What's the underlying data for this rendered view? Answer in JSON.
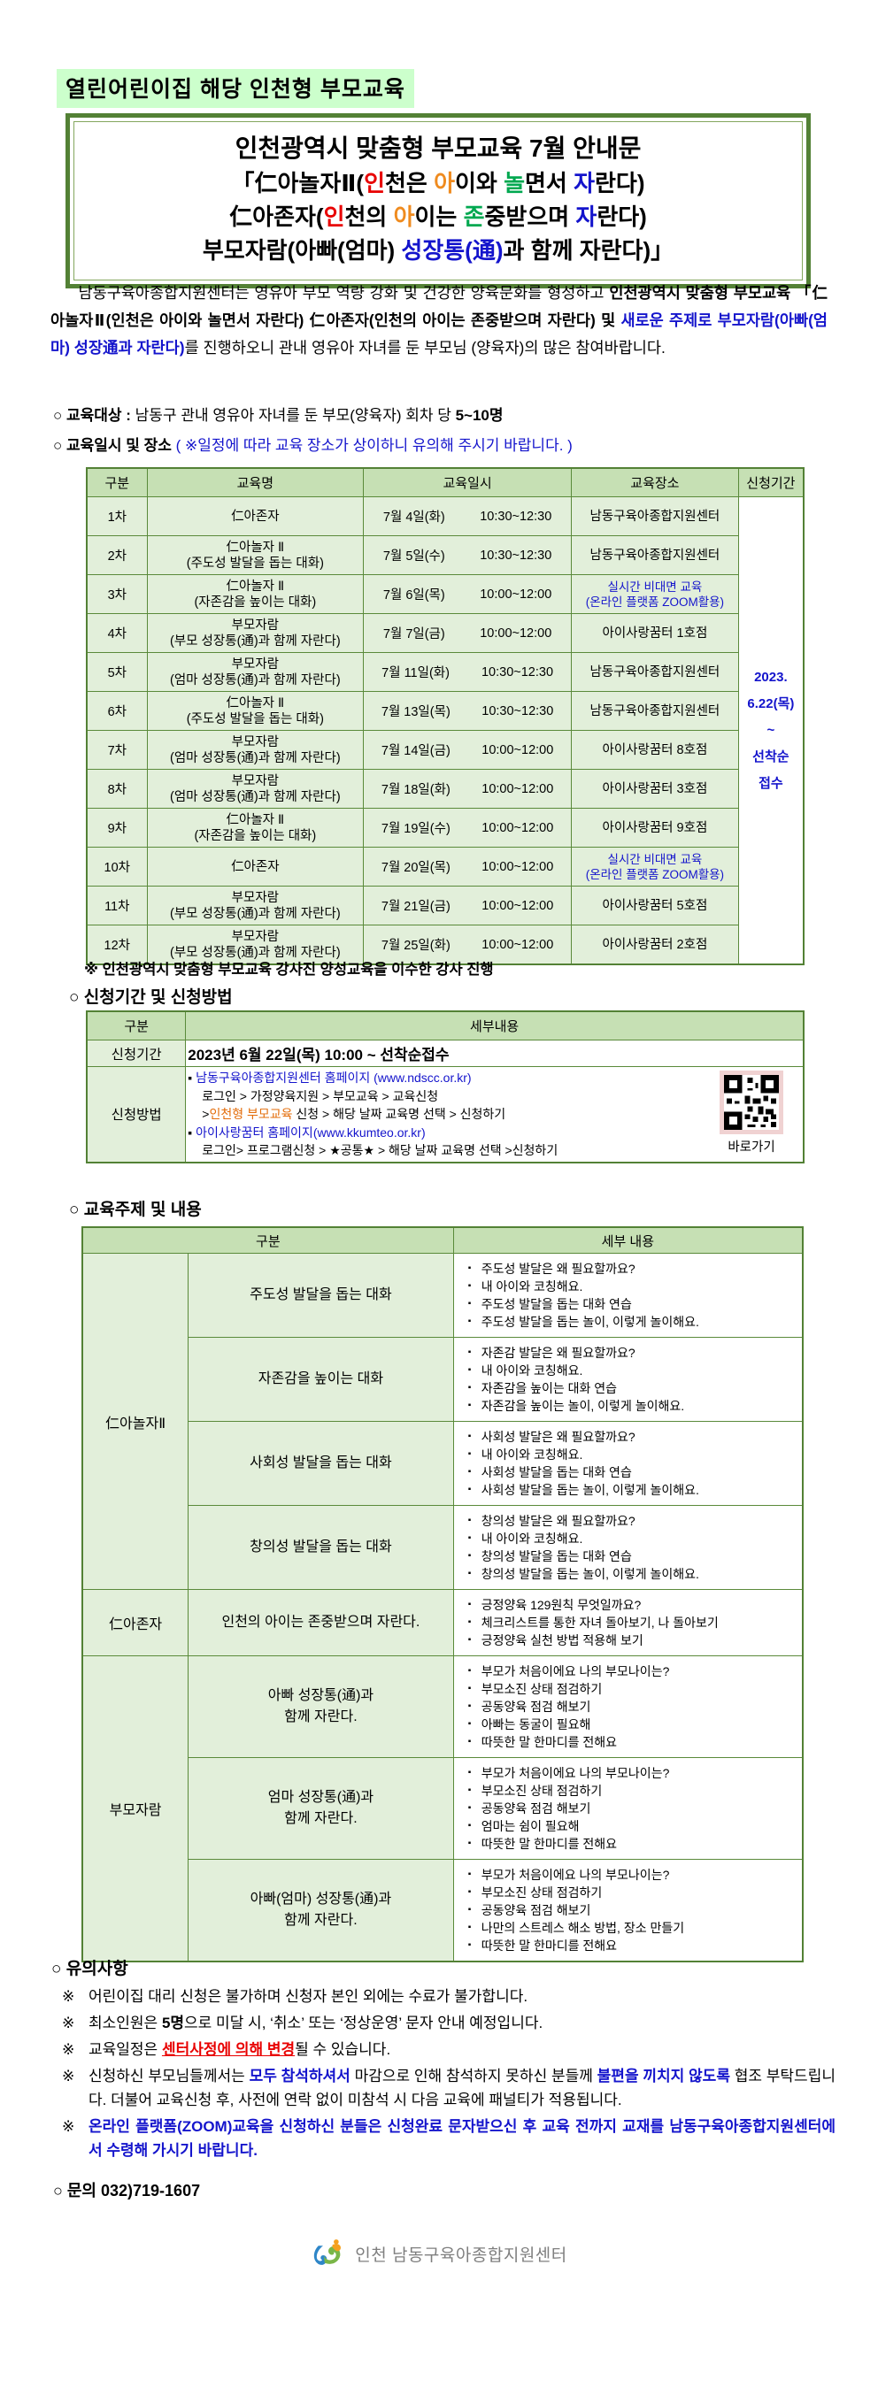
{
  "banner": {
    "label": "열린어린이집 해당 인천형 부모교육"
  },
  "title_box": {
    "line1": "인천광역시 맞춤형 부모교육 7월 안내문",
    "line2": [
      {
        "t": "「仁아놀자Ⅱ("
      },
      {
        "t": "인",
        "c": "red"
      },
      {
        "t": "천은 "
      },
      {
        "t": "아",
        "c": "orange"
      },
      {
        "t": "이와 "
      },
      {
        "t": "놀",
        "c": "green"
      },
      {
        "t": "면서 "
      },
      {
        "t": "자",
        "c": "blue"
      },
      {
        "t": "란다)"
      }
    ],
    "line3": [
      {
        "t": "仁아존자("
      },
      {
        "t": "인",
        "c": "red"
      },
      {
        "t": "천의 "
      },
      {
        "t": "아",
        "c": "orange"
      },
      {
        "t": "이는 "
      },
      {
        "t": "존",
        "c": "green"
      },
      {
        "t": "중받으며 "
      },
      {
        "t": "자",
        "c": "blue"
      },
      {
        "t": "란다)"
      }
    ],
    "line4": [
      {
        "t": "부모자람(아빠(엄마) "
      },
      {
        "t": "성장통(通)",
        "c": "blue"
      },
      {
        "t": "과 함께 자란다)」"
      }
    ]
  },
  "intro": {
    "segments": [
      {
        "t": "남동구육아종합지원센터는 영유아 부모 역량 강화 및 건강한 양육문화를 형성하고 "
      },
      {
        "t": "인천광역시 맞춤형 부모교육 「仁아놀자Ⅱ(인천은 아이와 놀면서 자란다) 仁아존자(인천의 아이는 존중받으며 자란다) 및 ",
        "c": "b"
      },
      {
        "t": "새로운 주제로 부모자람(아빠(엄마) 성장通과 자란다)",
        "c": "b blue"
      },
      {
        "t": "를 진행하오니 관내 영유아 자녀를 둔 부모님 (양육자)의 많은 참여바랍니다."
      }
    ]
  },
  "target_line": {
    "segments": [
      {
        "t": "○ "
      },
      {
        "t": "교육대상 : ",
        "c": "b"
      },
      {
        "t": "남동구 관내 영유아 자녀를 둔 부모(양육자) 회차 당 "
      },
      {
        "t": "5~10명",
        "c": "b"
      }
    ]
  },
  "schedule_line": {
    "segments": [
      {
        "t": "○ "
      },
      {
        "t": "교육일시 및 장소 ",
        "c": "b"
      },
      {
        "t": "( ※일정에 따라 교육 장소가 상이하니 유의해 주시기 바랍니다. )",
        "c": "blue"
      }
    ]
  },
  "schedule_table": {
    "headers": [
      "구분",
      "교육명",
      "교육일시",
      "교육장소",
      "신청기간"
    ],
    "rows": [
      {
        "no": "1차",
        "name": [
          "仁아존자"
        ],
        "date": "7월 4일(화)",
        "time": "10:30~12:30",
        "place": [
          "남동구육아종합지원센터"
        ],
        "online": false
      },
      {
        "no": "2차",
        "name": [
          "仁아놀자 Ⅱ",
          "(주도성 발달을 돕는 대화)"
        ],
        "date": "7월 5일(수)",
        "time": "10:30~12:30",
        "place": [
          "남동구육아종합지원센터"
        ],
        "online": false
      },
      {
        "no": "3차",
        "name": [
          "仁아놀자 Ⅱ",
          "(자존감을 높이는 대화)"
        ],
        "date": "7월 6일(목)",
        "time": "10:00~12:00",
        "place": [
          "실시간 비대면 교육",
          "(온라인 플랫폼 ZOOM활용)"
        ],
        "online": true
      },
      {
        "no": "4차",
        "name": [
          "부모자람",
          "(부모 성장통(通)과 함께 자란다)"
        ],
        "date": "7월 7일(금)",
        "time": "10:00~12:00",
        "place": [
          "아이사랑꿈터 1호점"
        ],
        "online": false
      },
      {
        "no": "5차",
        "name": [
          "부모자람",
          "(엄마 성장통(通)과 함께 자란다)"
        ],
        "date": "7월 11일(화)",
        "time": "10:30~12:30",
        "place": [
          "남동구육아종합지원센터"
        ],
        "online": false
      },
      {
        "no": "6차",
        "name": [
          "仁아놀자 Ⅱ",
          "(주도성 발달을 돕는 대화)"
        ],
        "date": "7월 13일(목)",
        "time": "10:30~12:30",
        "place": [
          "남동구육아종합지원센터"
        ],
        "online": false
      },
      {
        "no": "7차",
        "name": [
          "부모자람",
          "(엄마 성장통(通)과 함께 자란다)"
        ],
        "date": "7월 14일(금)",
        "time": "10:00~12:00",
        "place": [
          "아이사랑꿈터 8호점"
        ],
        "online": false
      },
      {
        "no": "8차",
        "name": [
          "부모자람",
          "(엄마 성장통(通)과 함께 자란다)"
        ],
        "date": "7월 18일(화)",
        "time": "10:00~12:00",
        "place": [
          "아이사랑꿈터 3호점"
        ],
        "online": false
      },
      {
        "no": "9차",
        "name": [
          "仁아놀자 Ⅱ",
          "(자존감을 높이는 대화)"
        ],
        "date": "7월 19일(수)",
        "time": "10:00~12:00",
        "place": [
          "아이사랑꿈터 9호점"
        ],
        "online": false
      },
      {
        "no": "10차",
        "name": [
          "仁아존자"
        ],
        "date": "7월 20일(목)",
        "time": "10:00~12:00",
        "place": [
          "실시간 비대면 교육",
          "(온라인 플랫폼 ZOOM활용)"
        ],
        "online": true
      },
      {
        "no": "11차",
        "name": [
          "부모자람",
          "(부모 성장통(通)과 함께 자란다)"
        ],
        "date": "7월 21일(금)",
        "time": "10:00~12:00",
        "place": [
          "아이사랑꿈터 5호점"
        ],
        "online": false
      },
      {
        "no": "12차",
        "name": [
          "부모자람",
          "(부모 성장통(通)과 함께 자란다)"
        ],
        "date": "7월 25일(화)",
        "time": "10:00~12:00",
        "place": [
          "아이사랑꿈터 2호점"
        ],
        "online": false
      }
    ],
    "apply_period_lines": [
      "2023.",
      "6.22(목)",
      "~",
      "선착순",
      "접수"
    ]
  },
  "instructor_note": "※ 인천광역시 맞춤형 부모교육 강사진 양성교육을 이수한 강사 진행",
  "apply_section": {
    "heading": "○ 신청기간 및 신청방법",
    "headers": [
      "구분",
      "세부내용"
    ],
    "period_label": "신청기간",
    "period_value": "2023년 6월 22일(목) 10:00 ~ 선착순접수",
    "method_label": "신청방법",
    "method_lines": [
      {
        "indent": false,
        "segs": [
          {
            "t": "▪ "
          },
          {
            "t": "남동구육아종합지원센터 홈페이지  (www.ndscc.or.kr)",
            "c": "blue"
          }
        ]
      },
      {
        "indent": true,
        "segs": [
          {
            "t": "로그인 > 가정양육지원 > 부모교육 > 교육신청"
          }
        ]
      },
      {
        "indent": true,
        "segs": [
          {
            "t": ">"
          },
          {
            "t": "인천형 부모교육",
            "c": "orange2"
          },
          {
            "t": " 신청 > 해당 날짜 교육명 선택 > 신청하기"
          }
        ]
      },
      {
        "indent": false,
        "segs": [
          {
            "t": "▪ "
          },
          {
            "t": "아이사랑꿈터 홈페이지(www.kkumteo.or.kr)",
            "c": "blue"
          }
        ]
      },
      {
        "indent": true,
        "segs": [
          {
            "t": "로그인> 프로그램신청 > ★공통★ > 해당 날짜 교육명 선택 >신청하기"
          }
        ]
      }
    ],
    "qr_label": "바로가기"
  },
  "topics_section": {
    "heading": "○ 교육주제 및 내용",
    "headers": [
      "구분",
      "세부 내용"
    ],
    "groups": [
      {
        "group": "仁아놀자Ⅱ",
        "rows": [
          {
            "topic": [
              "주도성 발달을 돕는 대화"
            ],
            "bullets": [
              "주도성 발달은 왜 필요할까요?",
              "내 아이와 코칭해요.",
              "주도성 발달을 돕는 대화 연습",
              "주도성 발달을 돕는 놀이, 이렇게 놀이해요."
            ]
          },
          {
            "topic": [
              "자존감을 높이는 대화"
            ],
            "bullets": [
              "자존감 발달은 왜 필요할까요?",
              "내 아이와 코칭해요.",
              "자존감을 높이는 대화 연습",
              "자존감을 높이는 놀이, 이렇게 놀이해요."
            ]
          },
          {
            "topic": [
              "사회성 발달을 돕는 대화"
            ],
            "bullets": [
              "사회성 발달은 왜 필요할까요?",
              "내 아이와 코칭해요.",
              "사회성 발달을 돕는 대화 연습",
              "사회성 발달을 돕는 놀이, 이렇게 놀이해요."
            ]
          },
          {
            "topic": [
              "창의성 발달을 돕는 대화"
            ],
            "bullets": [
              "창의성 발달은 왜 필요할까요?",
              "내 아이와 코칭해요.",
              "창의성 발달을 돕는 대화 연습",
              "창의성 발달을 돕는 놀이, 이렇게 놀이해요."
            ]
          }
        ]
      },
      {
        "group": "仁아존자",
        "rows": [
          {
            "topic": [
              "인천의 아이는 존중받으며 자란다."
            ],
            "bullets": [
              "긍정양육 129원칙 무엇일까요?",
              "체크리스트를 통한 자녀 돌아보기, 나 돌아보기",
              "긍정양육 실천 방법 적용해 보기"
            ]
          }
        ]
      },
      {
        "group": "부모자람",
        "rows": [
          {
            "topic": [
              "아빠 성장통(通)과",
              "함께 자란다."
            ],
            "bullets": [
              "부모가 처음이에요 나의 부모나이는?",
              "부모소진 상태 점검하기",
              "공동양육 점검 해보기",
              "아빠는 동굴이 필요해",
              "따뜻한 말 한마디를 전해요"
            ]
          },
          {
            "topic": [
              "엄마 성장통(通)과",
              "함께 자란다."
            ],
            "bullets": [
              "부모가 처음이에요 나의 부모나이는?",
              "부모소진 상태 점검하기",
              "공동양육 점검 해보기",
              "엄마는 쉼이 필요해",
              "따뜻한 말 한마디를 전해요"
            ]
          },
          {
            "topic": [
              "아빠(엄마) 성장통(通)과",
              "함께 자란다."
            ],
            "bullets": [
              "부모가 처음이에요 나의 부모나이는?",
              "부모소진 상태 점검하기",
              "공동양육 점검 해보기",
              "나만의 스트레스 해소 방법, 장소 만들기",
              "따뜻한 말 한마디를 전해요"
            ]
          }
        ]
      }
    ]
  },
  "notes_section": {
    "heading": "○ 유의사항",
    "items": [
      [
        {
          "t": "어린이집 대리 신청은 불가하며 신청자 본인 외에는 수료가 불가합니다."
        }
      ],
      [
        {
          "t": "최소인원은 "
        },
        {
          "t": "5명",
          "c": "b"
        },
        {
          "t": "으로 미달 시, ‘취소’ 또는 ‘정상운영’ 문자 안내 예정입니다."
        }
      ],
      [
        {
          "t": "교육일정은 "
        },
        {
          "t": "센터사정에 의해 변경",
          "c": "red b u"
        },
        {
          "t": "될 수 있습니다."
        }
      ],
      [
        {
          "t": "신청하신 부모님들께서는 "
        },
        {
          "t": "모두 참석하셔서",
          "c": "blue b"
        },
        {
          "t": " 마감으로 인해 참석하지 못하신 분들께 "
        },
        {
          "t": "불편을 끼치지 않도록",
          "c": "blue b"
        },
        {
          "t": " 협조 부탁드립니다. 더불어 교육신청 후, 사전에 연락 없이 미참석 시 다음 교육에 패널티가 적용됩니다."
        }
      ],
      [
        {
          "t": "온라인 플랫폼(ZOOM)교육을 신청하신 분들은 신청완료 문자받으신 후 교육 전까지 교재를 남동구육아종합지원센터에서 수령해 가시기 바랍니다.",
          "c": "blue b"
        }
      ]
    ]
  },
  "contact_line": "○ 문의 032)719-1607",
  "footer": {
    "org": "인천 남동구육아종합지원센터"
  },
  "colors": {
    "highlight_bg": "#ccffcc",
    "table_border": "#538135",
    "table_header_bg": "#c6e0b4",
    "table_body_bg": "#e2efda",
    "accent_blue": "#1414cc",
    "accent_red": "#e80000",
    "accent_orange": "#ef8b1f",
    "accent_green": "#00a850",
    "link_orange": "#e36c09",
    "footer_gray": "#7f7f7f"
  }
}
